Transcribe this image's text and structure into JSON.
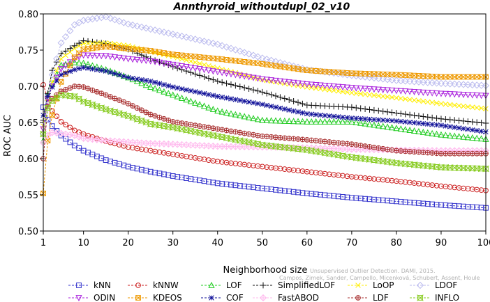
{
  "chart_data": {
    "type": "line",
    "title": "Annthyroid_withoutdupl_02_v10",
    "xlabel": "Neighborhood size",
    "ylabel": "ROC AUC",
    "xlim": [
      1,
      100
    ],
    "ylim": [
      0.5,
      0.8
    ],
    "xticks": [
      1,
      10,
      20,
      30,
      40,
      50,
      60,
      70,
      80,
      90,
      100
    ],
    "yticks": [
      0.5,
      0.55,
      0.6,
      0.65,
      0.7,
      0.75,
      0.8
    ],
    "xtick_labels": [
      "1",
      "10",
      "20",
      "30",
      "40",
      "50",
      "60",
      "70",
      "80",
      "90",
      "100"
    ],
    "ytick_labels": [
      "0.50",
      "0.55",
      "0.60",
      "0.65",
      "0.70",
      "0.75",
      "0.80"
    ],
    "grid": false,
    "legend_position": "bottom",
    "x": [
      1,
      2,
      3,
      5,
      8,
      10,
      15,
      20,
      25,
      30,
      40,
      50,
      60,
      70,
      80,
      90,
      100
    ],
    "series": [
      {
        "name": "kNN",
        "color": "#3333cc",
        "marker": "square",
        "dash": "dash",
        "values": [
          0.671,
          0.654,
          0.645,
          0.632,
          0.618,
          0.611,
          0.598,
          0.589,
          0.582,
          0.576,
          0.566,
          0.559,
          0.552,
          0.546,
          0.541,
          0.536,
          0.532
        ]
      },
      {
        "name": "kNNW",
        "color": "#cc2222",
        "marker": "circle",
        "dash": "dash",
        "values": [
          0.702,
          0.683,
          0.666,
          0.651,
          0.639,
          0.634,
          0.624,
          0.616,
          0.611,
          0.606,
          0.596,
          0.589,
          0.582,
          0.575,
          0.569,
          0.562,
          0.556
        ]
      },
      {
        "name": "LOF",
        "color": "#22cc22",
        "marker": "triangle-up",
        "dash": "dash",
        "values": [
          0.625,
          0.688,
          0.703,
          0.729,
          0.733,
          0.732,
          0.723,
          0.712,
          0.699,
          0.688,
          0.666,
          0.653,
          0.651,
          0.651,
          0.642,
          0.633,
          0.627
        ]
      },
      {
        "name": "SimplifiedLOF",
        "color": "#111111",
        "marker": "plus",
        "dash": "dash",
        "values": [
          0.653,
          0.69,
          0.722,
          0.745,
          0.756,
          0.763,
          0.759,
          0.751,
          0.738,
          0.727,
          0.707,
          0.692,
          0.674,
          0.671,
          0.663,
          0.655,
          0.649
        ]
      },
      {
        "name": "LoOP",
        "color": "#ffee00",
        "marker": "cross",
        "dash": "dash",
        "values": [
          0.645,
          0.683,
          0.706,
          0.738,
          0.752,
          0.759,
          0.76,
          0.756,
          0.748,
          0.741,
          0.725,
          0.709,
          0.699,
          0.691,
          0.684,
          0.676,
          0.669
        ]
      },
      {
        "name": "LDOF",
        "color": "#bbbbee",
        "marker": "diamond",
        "dash": "dash",
        "values": [
          0.635,
          0.68,
          0.716,
          0.76,
          0.785,
          0.791,
          0.796,
          0.786,
          0.779,
          0.772,
          0.758,
          0.739,
          0.723,
          0.715,
          0.708,
          0.704,
          0.701
        ]
      },
      {
        "name": "ODIN",
        "color": "#aa22dd",
        "marker": "triangle-down",
        "dash": "dash",
        "values": [
          0.641,
          0.683,
          0.7,
          0.724,
          0.738,
          0.743,
          0.742,
          0.738,
          0.735,
          0.73,
          0.72,
          0.71,
          0.703,
          0.698,
          0.694,
          0.69,
          0.687
        ]
      },
      {
        "name": "KDEOS",
        "color": "#ee9900",
        "marker": "square-x",
        "dash": "dash",
        "values": [
          0.552,
          0.625,
          0.66,
          0.706,
          0.74,
          0.751,
          0.755,
          0.752,
          0.749,
          0.744,
          0.738,
          0.731,
          0.722,
          0.718,
          0.716,
          0.713,
          0.713
        ]
      },
      {
        "name": "COF",
        "color": "#111199",
        "marker": "star",
        "dash": "dash",
        "values": [
          0.66,
          0.686,
          0.699,
          0.716,
          0.723,
          0.726,
          0.721,
          0.712,
          0.707,
          0.699,
          0.686,
          0.675,
          0.662,
          0.656,
          0.652,
          0.646,
          0.637
        ]
      },
      {
        "name": "FastABOD",
        "color": "#ffbbee",
        "marker": "diamond-plus",
        "dash": "dash",
        "values": [
          0.622,
          0.632,
          0.636,
          0.635,
          0.632,
          0.628,
          0.625,
          0.623,
          0.621,
          0.62,
          0.617,
          0.616,
          0.615,
          0.613,
          0.612,
          0.611,
          0.611
        ]
      },
      {
        "name": "LDF",
        "color": "#aa3333",
        "marker": "circle-plus",
        "dash": "dash",
        "values": [
          0.6,
          0.672,
          0.683,
          0.693,
          0.7,
          0.699,
          0.688,
          0.676,
          0.661,
          0.651,
          0.641,
          0.631,
          0.626,
          0.62,
          0.611,
          0.607,
          0.607
        ]
      },
      {
        "name": "INFLO",
        "color": "#88cc22",
        "marker": "x-square",
        "dash": "dash",
        "values": [
          0.634,
          0.67,
          0.68,
          0.688,
          0.686,
          0.679,
          0.668,
          0.659,
          0.648,
          0.643,
          0.631,
          0.619,
          0.612,
          0.602,
          0.594,
          0.588,
          0.586
        ]
      }
    ],
    "attribution_line1": "Campos, Zimek, Sander, Campello, Micenková, Schubert, Assent, Houle",
    "attribution_line2": "Unsupervised Outlier Detection. DAMI, 2015."
  }
}
